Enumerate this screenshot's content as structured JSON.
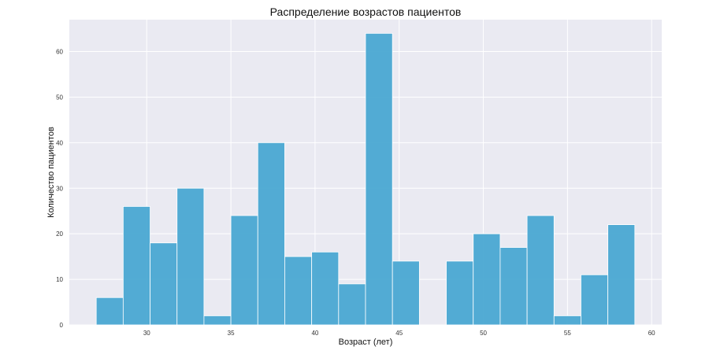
{
  "chart_data": {
    "type": "bar",
    "subtype": "histogram",
    "title": "Распределение возрастов пациентов",
    "xlabel": "Возраст (лет)",
    "ylabel": "Количество пациентов",
    "bin_edges": [
      27,
      28.6,
      30.2,
      31.8,
      33.4,
      35,
      36.6,
      38.2,
      39.8,
      41.4,
      43,
      44.6,
      46.2,
      47.8,
      49.4,
      51,
      52.6,
      54.2,
      55.8,
      57.4,
      59
    ],
    "values": [
      6,
      26,
      18,
      30,
      2,
      24,
      40,
      15,
      16,
      9,
      64,
      14,
      0,
      14,
      20,
      17,
      24,
      2,
      11,
      22
    ],
    "xlim": [
      25.4,
      60.6
    ],
    "ylim": [
      0,
      67
    ],
    "xticks": [
      30,
      35,
      40,
      45,
      50,
      55,
      60
    ],
    "yticks": [
      0,
      10,
      20,
      30,
      40,
      50,
      60
    ],
    "grid": true,
    "colors": {
      "bar": "#4aa8d2",
      "background": "#eaeaf2",
      "grid": "#ffffff"
    }
  }
}
